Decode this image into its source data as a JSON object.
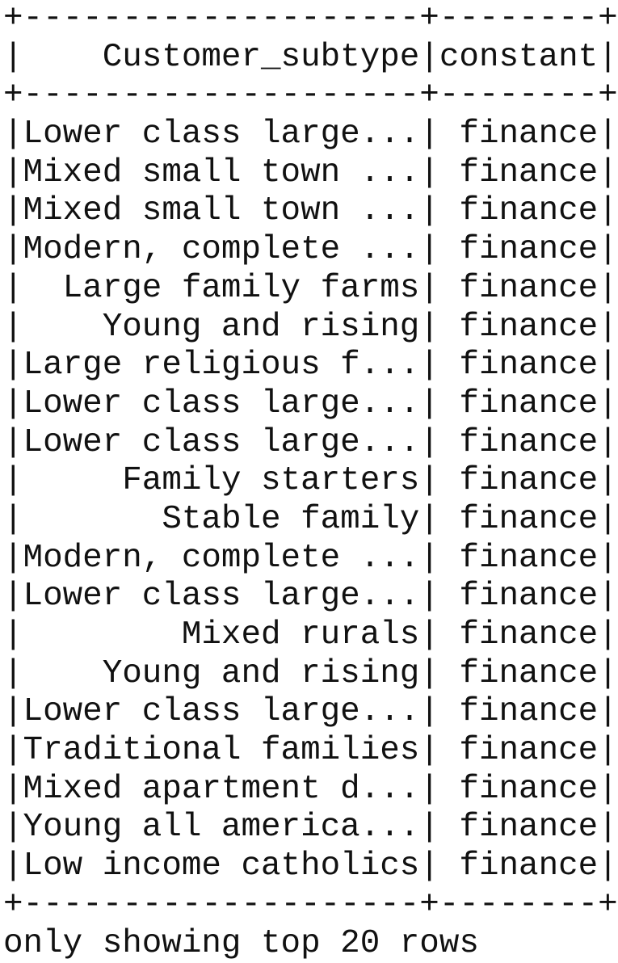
{
  "table": {
    "border_line": "+--------------------+--------+",
    "separator_char": "|",
    "columns": [
      {
        "header": "Customer_subtype",
        "width": 20
      },
      {
        "header": "constant",
        "width": 8
      }
    ],
    "rows": [
      [
        "Lower class large...",
        "finance"
      ],
      [
        "Mixed small town ...",
        "finance"
      ],
      [
        "Mixed small town ...",
        "finance"
      ],
      [
        "Modern, complete ...",
        "finance"
      ],
      [
        "Large family farms",
        "finance"
      ],
      [
        "Young and rising",
        "finance"
      ],
      [
        "Large religious f...",
        "finance"
      ],
      [
        "Lower class large...",
        "finance"
      ],
      [
        "Lower class large...",
        "finance"
      ],
      [
        "Family starters",
        "finance"
      ],
      [
        "Stable family",
        "finance"
      ],
      [
        "Modern, complete ...",
        "finance"
      ],
      [
        "Lower class large...",
        "finance"
      ],
      [
        "Mixed rurals",
        "finance"
      ],
      [
        "Young and rising",
        "finance"
      ],
      [
        "Lower class large...",
        "finance"
      ],
      [
        "Traditional families",
        "finance"
      ],
      [
        "Mixed apartment d...",
        "finance"
      ],
      [
        "Young all america...",
        "finance"
      ],
      [
        "Low income catholics",
        "finance"
      ]
    ]
  },
  "footer": "only showing top 20 rows",
  "colors": {
    "text": "#111111",
    "background": "#ffffff"
  }
}
